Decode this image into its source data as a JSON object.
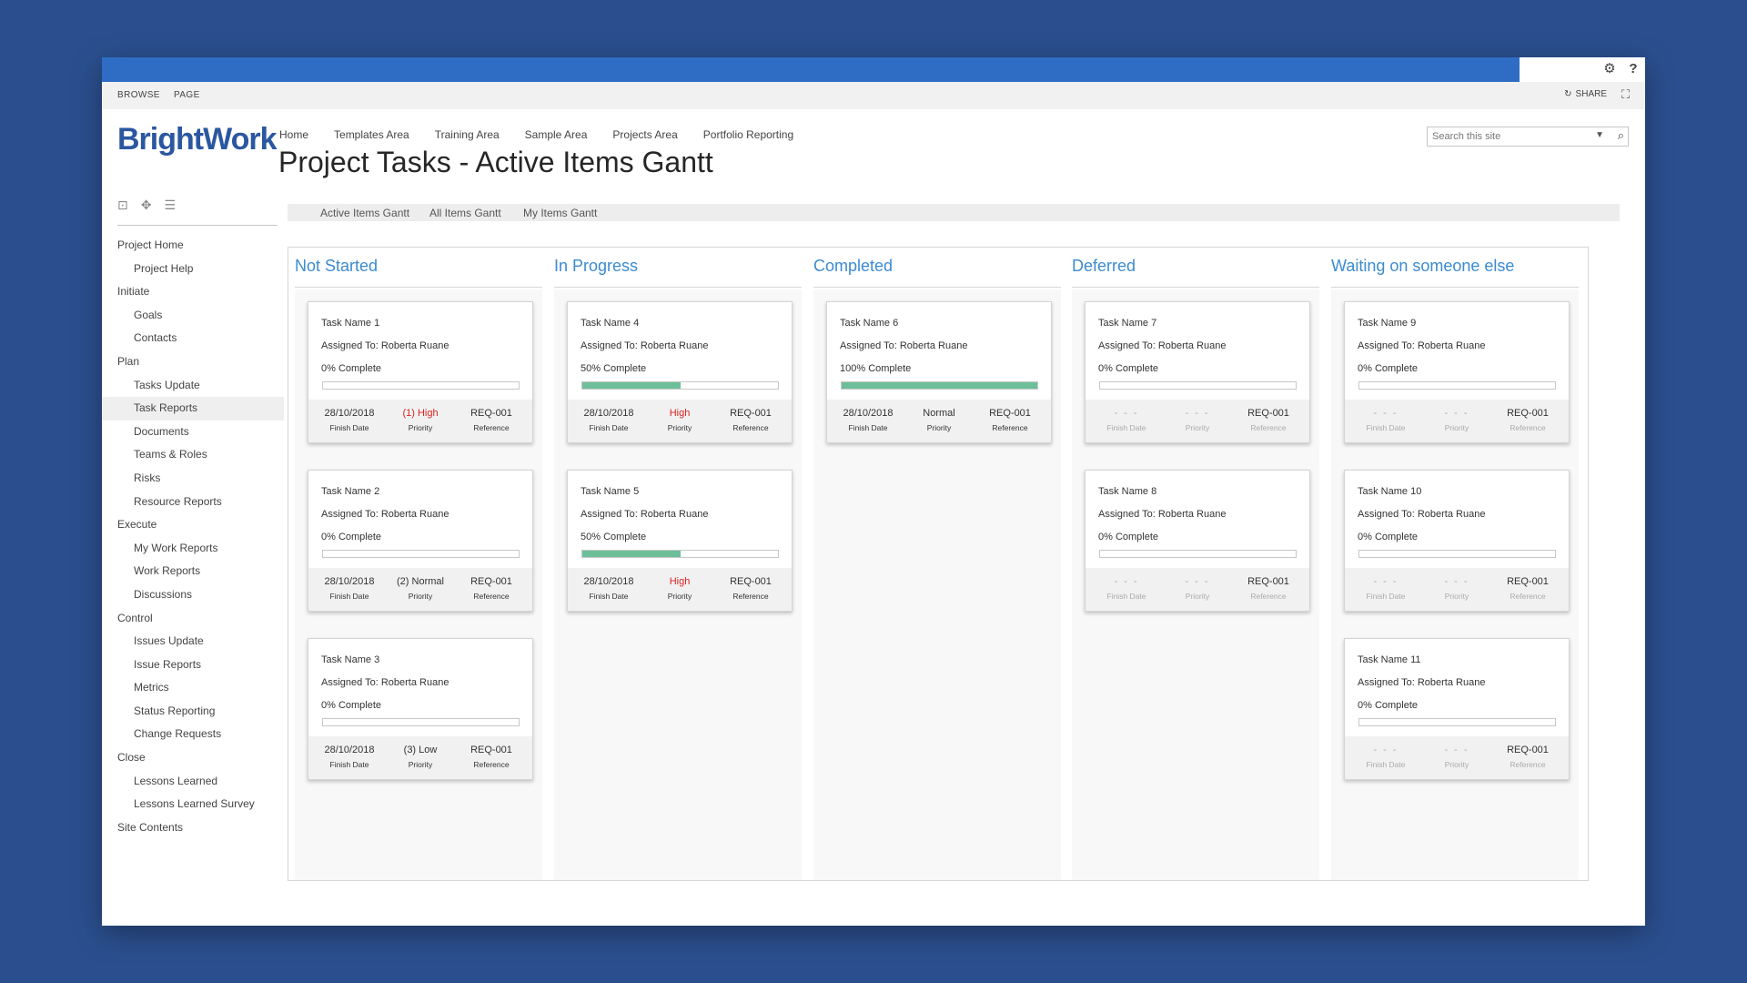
{
  "ribbon": {
    "browse": "BROWSE",
    "page": "PAGE",
    "share": "SHARE"
  },
  "logo": "BrightWork",
  "top_nav": [
    "Home",
    "Templates Area",
    "Training Area",
    "Sample Area",
    "Projects Area",
    "Portfolio Reporting"
  ],
  "search": {
    "placeholder": "Search this site"
  },
  "page_title": "Project Tasks - Active Items Gantt",
  "left_nav": [
    {
      "label": "Project Home",
      "level": 1
    },
    {
      "label": "Project Help",
      "level": 2
    },
    {
      "label": "Initiate",
      "level": 1
    },
    {
      "label": "Goals",
      "level": 2
    },
    {
      "label": "Contacts",
      "level": 2
    },
    {
      "label": "Plan",
      "level": 1
    },
    {
      "label": "Tasks Update",
      "level": 2
    },
    {
      "label": "Task Reports",
      "level": 2,
      "selected": true
    },
    {
      "label": "Documents",
      "level": 2
    },
    {
      "label": "Teams & Roles",
      "level": 2
    },
    {
      "label": "Risks",
      "level": 2
    },
    {
      "label": "Resource Reports",
      "level": 2
    },
    {
      "label": "Execute",
      "level": 1
    },
    {
      "label": "My Work Reports",
      "level": 2
    },
    {
      "label": "Work Reports",
      "level": 2
    },
    {
      "label": "Discussions",
      "level": 2
    },
    {
      "label": "Control",
      "level": 1
    },
    {
      "label": "Issues Update",
      "level": 2
    },
    {
      "label": "Issue Reports",
      "level": 2
    },
    {
      "label": "Metrics",
      "level": 2
    },
    {
      "label": "Status Reporting",
      "level": 2
    },
    {
      "label": "Change Requests",
      "level": 2
    },
    {
      "label": "Close",
      "level": 1
    },
    {
      "label": "Lessons Learned",
      "level": 2
    },
    {
      "label": "Lessons Learned Survey",
      "level": 2
    },
    {
      "label": "Site Contents",
      "level": 1
    }
  ],
  "view_tabs": [
    {
      "label": "Active Items Gantt",
      "active": true
    },
    {
      "label": "All Items Gantt",
      "active": false
    },
    {
      "label": "My Items Gantt",
      "active": false
    }
  ],
  "labels": {
    "finish_date": "Finish Date",
    "priority": "Priority",
    "reference": "Reference"
  },
  "columns": [
    {
      "title": "Not Started",
      "cards": [
        {
          "name": "Task Name 1",
          "assigned": "Assigned To: Roberta Ruane",
          "pct_label": "0% Complete",
          "progress": 0,
          "finish": "28/10/2018",
          "priority": "(1) High",
          "priority_high": true,
          "reference": "REQ-001"
        },
        {
          "name": "Task Name 2",
          "assigned": "Assigned To: Roberta Ruane",
          "pct_label": "0% Complete",
          "progress": 0,
          "finish": "28/10/2018",
          "priority": "(2) Normal",
          "priority_high": false,
          "reference": "REQ-001"
        },
        {
          "name": "Task Name 3",
          "assigned": "Assigned To: Roberta Ruane",
          "pct_label": "0% Complete",
          "progress": 0,
          "finish": "28/10/2018",
          "priority": "(3) Low",
          "priority_high": false,
          "reference": "REQ-001"
        }
      ]
    },
    {
      "title": "In Progress",
      "cards": [
        {
          "name": "Task Name 4",
          "assigned": "Assigned To: Roberta Ruane",
          "pct_label": "50% Complete",
          "progress": 50,
          "finish": "28/10/2018",
          "priority": "High",
          "priority_high": true,
          "reference": "REQ-001"
        },
        {
          "name": "Task Name 5",
          "assigned": "Assigned To: Roberta Ruane",
          "pct_label": "50% Complete",
          "progress": 50,
          "finish": "28/10/2018",
          "priority": "High",
          "priority_high": true,
          "reference": "REQ-001"
        }
      ]
    },
    {
      "title": "Completed",
      "cards": [
        {
          "name": "Task Name 6",
          "assigned": "Assigned To: Roberta Ruane",
          "pct_label": "100% Complete",
          "progress": 100,
          "finish": "28/10/2018",
          "priority": "Normal",
          "priority_high": false,
          "reference": "REQ-001"
        }
      ]
    },
    {
      "title": "Deferred",
      "cards": [
        {
          "name": "Task Name 7",
          "assigned": "Assigned To: Roberta Ruane",
          "pct_label": "0% Complete",
          "progress": 0,
          "finish": "- - -",
          "priority": "- - -",
          "priority_high": false,
          "reference": "REQ-001",
          "empty": true
        },
        {
          "name": "Task Name 8",
          "assigned": "Assigned To: Roberta Ruane",
          "pct_label": "0% Complete",
          "progress": 0,
          "finish": "- - -",
          "priority": "- - -",
          "priority_high": false,
          "reference": "REQ-001",
          "empty": true
        }
      ]
    },
    {
      "title": "Waiting on someone else",
      "cards": [
        {
          "name": "Task Name 9",
          "assigned": "Assigned To: Roberta Ruane",
          "pct_label": "0% Complete",
          "progress": 0,
          "finish": "- - -",
          "priority": "- - -",
          "priority_high": false,
          "reference": "REQ-001",
          "empty": true
        },
        {
          "name": "Task Name 10",
          "assigned": "Assigned To: Roberta Ruane",
          "pct_label": "0% Complete",
          "progress": 0,
          "finish": "- - -",
          "priority": "- - -",
          "priority_high": false,
          "reference": "REQ-001",
          "empty": true
        },
        {
          "name": "Task Name 11",
          "assigned": "Assigned To: Roberta Ruane",
          "pct_label": "0% Complete",
          "progress": 0,
          "finish": "- - -",
          "priority": "- - -",
          "priority_high": false,
          "reference": "REQ-001",
          "empty": true
        }
      ]
    }
  ],
  "colors": {
    "suite_bar": "#2f6dc4",
    "column_title": "#3c8bd0",
    "progress_fill": "#6dbf99",
    "priority_high": "#dd2222",
    "background": "#2b4f8e"
  },
  "icons": {
    "settings": "gear-icon",
    "help": "help-icon",
    "share": "share-icon",
    "focus": "focus-on-content-icon",
    "search": "search-icon"
  }
}
